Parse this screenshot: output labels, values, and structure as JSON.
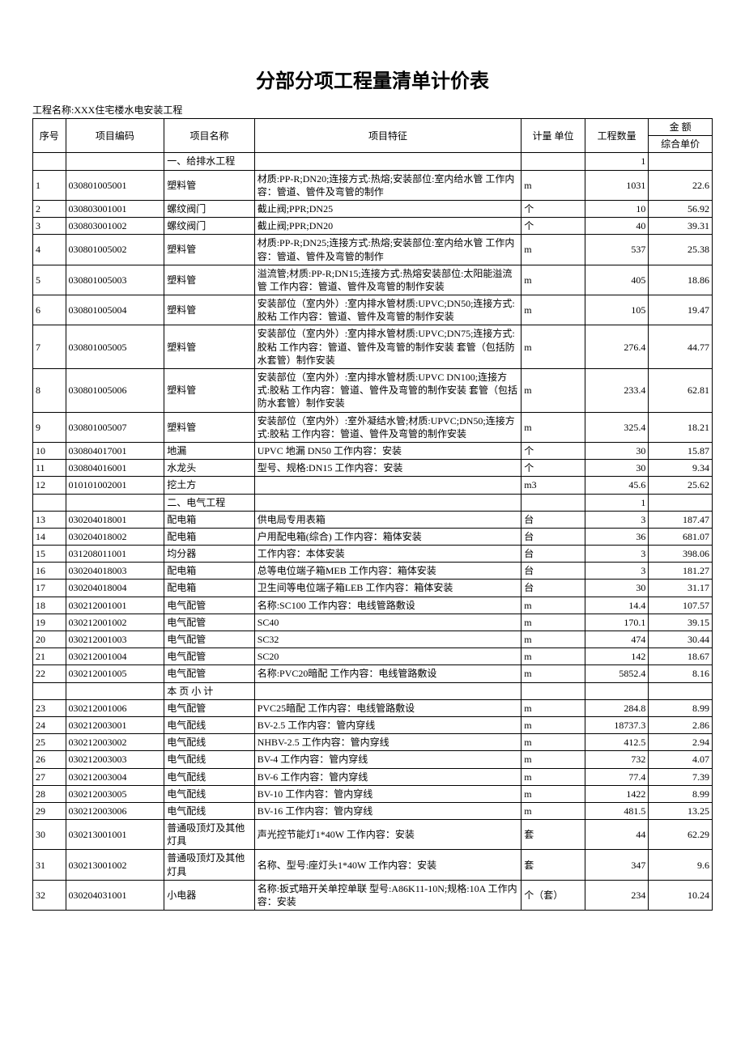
{
  "title": "分部分项工程量清单计价表",
  "project_label": "工程名称:",
  "project_name": "XXX住宅楼水电安装工程",
  "columns": {
    "seq": "序号",
    "code": "项目编码",
    "name": "项目名称",
    "feature": "项目特征",
    "unit": "计量 单位",
    "qty": "工程数量",
    "amount": "金    额",
    "unit_price": "综合单价"
  },
  "sections": [
    {
      "label": "一、给排水工程",
      "qty": "1"
    },
    {
      "label": "二、电气工程",
      "qty": "1"
    },
    {
      "label": "本 页 小 计",
      "qty": ""
    }
  ],
  "rows": [
    {
      "seq": "1",
      "code": "030801005001",
      "name": "塑料管",
      "feature": "材质:PP-R;DN20;连接方式:热熔;安装部位:室内给水管 工作内容：管道、管件及弯管的制作",
      "unit": "m",
      "qty": "1031",
      "price": "22.6"
    },
    {
      "seq": "2",
      "code": "030803001001",
      "name": "螺纹阀门",
      "feature": "截止阀;PPR;DN25",
      "unit": "个",
      "qty": "10",
      "price": "56.92"
    },
    {
      "seq": "3",
      "code": "030803001002",
      "name": "螺纹阀门",
      "feature": "截止阀;PPR;DN20",
      "unit": "个",
      "qty": "40",
      "price": "39.31"
    },
    {
      "seq": "4",
      "code": "030801005002",
      "name": "塑料管",
      "feature": "材质:PP-R;DN25;连接方式:热熔;安装部位:室内给水管 工作内容：管道、管件及弯管的制作",
      "unit": "m",
      "qty": "537",
      "price": "25.38"
    },
    {
      "seq": "5",
      "code": "030801005003",
      "name": "塑料管",
      "feature": "溢流管;材质:PP-R;DN15;连接方式:热熔安装部位:太阳能溢流管 工作内容：管道、管件及弯管的制作安装",
      "unit": "m",
      "qty": "405",
      "price": "18.86"
    },
    {
      "seq": "6",
      "code": "030801005004",
      "name": "塑料管",
      "feature": "安装部位（室内外）:室内排水管材质:UPVC;DN50;连接方式:胶粘 工作内容：管道、管件及弯管的制作安装",
      "unit": "m",
      "qty": "105",
      "price": "19.47"
    },
    {
      "seq": "7",
      "code": "030801005005",
      "name": "塑料管",
      "feature": "安装部位（室内外）:室内排水管材质:UPVC;DN75;连接方式:胶粘 工作内容：管道、管件及弯管的制作安装 套管（包括防水套管）制作安装",
      "unit": "m",
      "qty": "276.4",
      "price": "44.77"
    },
    {
      "seq": "8",
      "code": "030801005006",
      "name": "塑料管",
      "feature": "安装部位（室内外）:室内排水管材质:UPVC DN100;连接方式:胶粘 工作内容：管道、管件及弯管的制作安装 套管（包括防水套管）制作安装",
      "unit": "m",
      "qty": "233.4",
      "price": "62.81"
    },
    {
      "seq": "9",
      "code": "030801005007",
      "name": "塑料管",
      "feature": "安装部位（室内外）:室外凝结水管;材质:UPVC;DN50;连接方式:胶粘 工作内容：管道、管件及弯管的制作安装",
      "unit": "m",
      "qty": "325.4",
      "price": "18.21"
    },
    {
      "seq": "10",
      "code": "030804017001",
      "name": "地漏",
      "feature": "UPVC 地漏 DN50 工作内容：安装",
      "unit": "个",
      "qty": "30",
      "price": "15.87"
    },
    {
      "seq": "11",
      "code": "030804016001",
      "name": "水龙头",
      "feature": "型号、规格:DN15 工作内容：安装",
      "unit": "个",
      "qty": "30",
      "price": "9.34"
    },
    {
      "seq": "12",
      "code": "010101002001",
      "name": "挖土方",
      "feature": "",
      "unit": "m3",
      "qty": "45.6",
      "price": "25.62"
    },
    {
      "seq": "13",
      "code": "030204018001",
      "name": "配电箱",
      "feature": "供电局专用表箱",
      "unit": "台",
      "qty": "3",
      "price": "187.47"
    },
    {
      "seq": "14",
      "code": "030204018002",
      "name": "配电箱",
      "feature": "户用配电箱(综合) 工作内容：箱体安装",
      "unit": "台",
      "qty": "36",
      "price": "681.07"
    },
    {
      "seq": "15",
      "code": "031208011001",
      "name": "均分器",
      "feature": " 工作内容：本体安装",
      "unit": "台",
      "qty": "3",
      "price": "398.06"
    },
    {
      "seq": "16",
      "code": "030204018003",
      "name": "配电箱",
      "feature": "总等电位端子箱MEB 工作内容：箱体安装",
      "unit": "台",
      "qty": "3",
      "price": "181.27"
    },
    {
      "seq": "17",
      "code": "030204018004",
      "name": "配电箱",
      "feature": "卫生间等电位端子箱LEB 工作内容：箱体安装",
      "unit": "台",
      "qty": "30",
      "price": "31.17"
    },
    {
      "seq": "18",
      "code": "030212001001",
      "name": "电气配管",
      "feature": "名称:SC100 工作内容：电线管路敷设",
      "unit": "m",
      "qty": "14.4",
      "price": "107.57"
    },
    {
      "seq": "19",
      "code": "030212001002",
      "name": "电气配管",
      "feature": "SC40",
      "unit": "m",
      "qty": "170.1",
      "price": "39.15"
    },
    {
      "seq": "20",
      "code": "030212001003",
      "name": "电气配管",
      "feature": "SC32",
      "unit": "m",
      "qty": "474",
      "price": "30.44"
    },
    {
      "seq": "21",
      "code": "030212001004",
      "name": "电气配管",
      "feature": "SC20",
      "unit": "m",
      "qty": "142",
      "price": "18.67"
    },
    {
      "seq": "22",
      "code": "030212001005",
      "name": "电气配管",
      "feature": "名称:PVC20暗配 工作内容：电线管路敷设",
      "unit": "m",
      "qty": "5852.4",
      "price": "8.16"
    },
    {
      "seq": "23",
      "code": "030212001006",
      "name": "电气配管",
      "feature": "PVC25暗配 工作内容：电线管路敷设",
      "unit": "m",
      "qty": "284.8",
      "price": "8.99"
    },
    {
      "seq": "24",
      "code": "030212003001",
      "name": "电气配线",
      "feature": "BV-2.5 工作内容：管内穿线",
      "unit": "m",
      "qty": "18737.3",
      "price": "2.86"
    },
    {
      "seq": "25",
      "code": "030212003002",
      "name": "电气配线",
      "feature": "NHBV-2.5 工作内容：管内穿线",
      "unit": "m",
      "qty": "412.5",
      "price": "2.94"
    },
    {
      "seq": "26",
      "code": "030212003003",
      "name": "电气配线",
      "feature": "BV-4 工作内容：管内穿线",
      "unit": "m",
      "qty": "732",
      "price": "4.07"
    },
    {
      "seq": "27",
      "code": "030212003004",
      "name": "电气配线",
      "feature": "BV-6 工作内容：管内穿线",
      "unit": "m",
      "qty": "77.4",
      "price": "7.39"
    },
    {
      "seq": "28",
      "code": "030212003005",
      "name": "电气配线",
      "feature": "BV-10 工作内容：管内穿线",
      "unit": "m",
      "qty": "1422",
      "price": "8.99"
    },
    {
      "seq": "29",
      "code": "030212003006",
      "name": "电气配线",
      "feature": "BV-16 工作内容：管内穿线",
      "unit": "m",
      "qty": "481.5",
      "price": "13.25"
    },
    {
      "seq": "30",
      "code": "030213001001",
      "name": "普通吸顶灯及其他灯具",
      "feature": "声光控节能灯1*40W 工作内容：安装",
      "unit": "套",
      "qty": "44",
      "price": "62.29"
    },
    {
      "seq": "31",
      "code": "030213001002",
      "name": "普通吸顶灯及其他灯具",
      "feature": "名称、型号:座灯头1*40W 工作内容：安装",
      "unit": "套",
      "qty": "347",
      "price": "9.6"
    },
    {
      "seq": "32",
      "code": "030204031001",
      "name": "小电器",
      "feature": "名称:扳式暗开关单控单联 型号:A86K11-10N;规格:10A 工作内容：安装",
      "unit": "个（套）",
      "qty": "234",
      "price": "10.24"
    }
  ]
}
